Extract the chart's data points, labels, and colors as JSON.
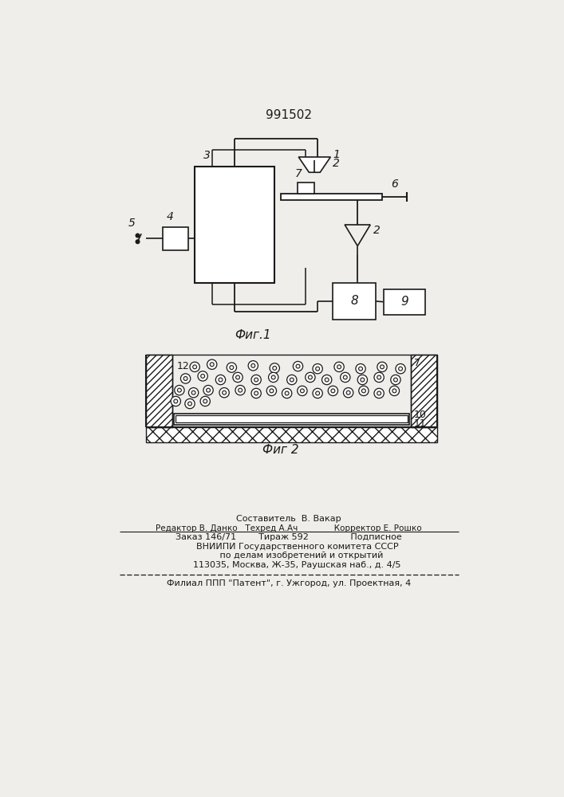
{
  "title": "991502",
  "fig1_label": "Фиг.1",
  "fig2_label": "Фиг 2",
  "bg_color": "#f0eeea",
  "line_color": "#1a1a1a",
  "footer_lines": [
    "Составитель  В. Вакар",
    "Редактор В. Данко   Техред А.Ач              Корректор Е. Рошко",
    "Заказ 146/71        Тираж 592               Подписное",
    "      ВНИИПИ Государственного комитета СССР",
    "         по делам изобретений и открытий",
    "      113035, Москва, Ж-35, Раушская наб., д. 4/5",
    "Филиал ППП \"Патент\", г. Ужгород, ул. Проектная, 4"
  ]
}
